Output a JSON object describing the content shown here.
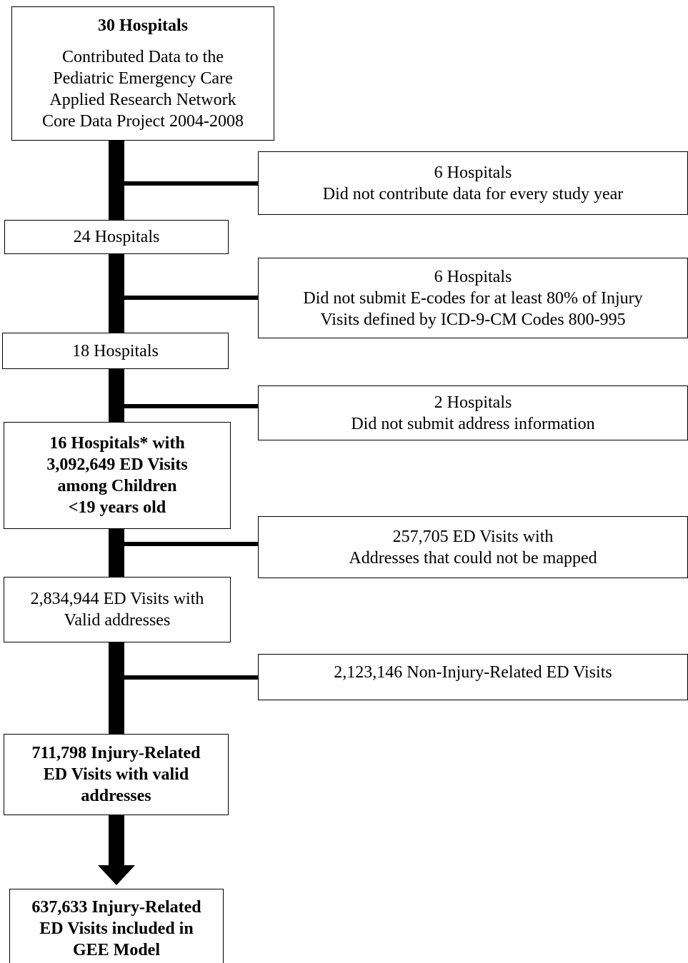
{
  "boxes": {
    "b1": {
      "title": "30 Hospitals",
      "lines": [
        "Contributed Data to the",
        "Pediatric Emergency Care",
        "Applied Research Network",
        "Core Data Project 2004-2008"
      ]
    },
    "e1": {
      "lines": [
        "6 Hospitals",
        "Did not contribute data for every study year"
      ]
    },
    "b2": {
      "lines": [
        "24 Hospitals"
      ]
    },
    "e2": {
      "lines": [
        "6 Hospitals",
        "Did not submit E-codes for at least 80% of Injury",
        "Visits defined by ICD-9-CM Codes 800-995"
      ]
    },
    "b3": {
      "lines": [
        "18 Hospitals"
      ]
    },
    "e3": {
      "lines": [
        "2 Hospitals",
        "Did not submit address information"
      ]
    },
    "b4": {
      "lines": [
        "16 Hospitals* with",
        "3,092,649 ED Visits",
        "among Children",
        "<19 years old"
      ]
    },
    "e4": {
      "lines": [
        "257,705 ED Visits with",
        "Addresses that could not be mapped"
      ]
    },
    "b5": {
      "lines": [
        "2,834,944 ED Visits with",
        "Valid addresses"
      ]
    },
    "e5": {
      "lines": [
        "2,123,146 Non-Injury-Related ED Visits"
      ]
    },
    "b6": {
      "lines": [
        "711,798 Injury-Related",
        "ED Visits with valid",
        "addresses"
      ]
    },
    "b7": {
      "lines": [
        "637,633 Injury-Related",
        "ED Visits included in",
        "GEE Model"
      ]
    }
  }
}
